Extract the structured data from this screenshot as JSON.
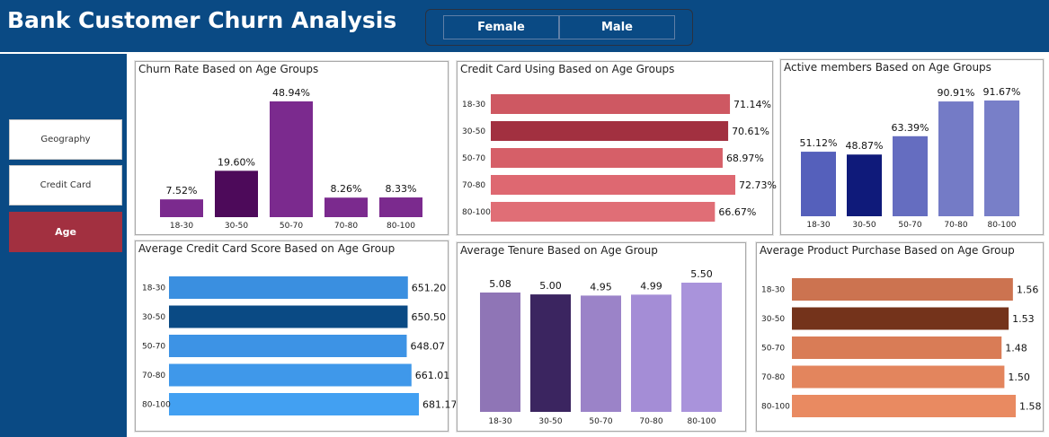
{
  "title": "Bank Customer Churn Analysis",
  "gender_filter": [
    "Female",
    "Male"
  ],
  "nav": [
    "Geography",
    "Credit Card",
    "Age"
  ],
  "active_nav": "Age",
  "colors": {
    "header": "#0a4a84",
    "active_nav": "#a23040"
  },
  "chart_data": [
    {
      "id": "churn",
      "type": "bar",
      "title": "Churn Rate Based on Age Groups",
      "categories": [
        "18-30",
        "30-50",
        "50-70",
        "70-80",
        "80-100"
      ],
      "values": [
        7.52,
        19.6,
        48.94,
        8.26,
        8.33
      ],
      "labels": [
        "7.52%",
        "19.60%",
        "48.94%",
        "8.26%",
        "8.33%"
      ],
      "colors": [
        "#7b2a8e",
        "#4d0a5a",
        "#7b2a8e",
        "#7b2a8e",
        "#7b2a8e"
      ],
      "ylim": [
        0,
        48.94
      ]
    },
    {
      "id": "creditcard",
      "type": "bar",
      "orientation": "horizontal",
      "title": "Credit Card Using Based on Age Groups",
      "categories": [
        "18-30",
        "30-50",
        "50-70",
        "70-80",
        "80-100"
      ],
      "values": [
        71.14,
        70.61,
        68.97,
        72.73,
        66.67
      ],
      "labels": [
        "71.14%",
        "70.61%",
        "68.97%",
        "72.73%",
        "66.67%"
      ],
      "colors": [
        "#ce5862",
        "#a23040",
        "#d65f68",
        "#de6871",
        "#e06e76"
      ],
      "xlim": [
        0,
        72.73
      ]
    },
    {
      "id": "active",
      "type": "bar",
      "title": "Active members Based on Age Groups",
      "categories": [
        "18-30",
        "30-50",
        "50-70",
        "70-80",
        "80-100"
      ],
      "values": [
        51.12,
        48.87,
        63.39,
        90.91,
        91.67
      ],
      "labels": [
        "51.12%",
        "48.87%",
        "63.39%",
        "90.91%",
        "91.67%"
      ],
      "colors": [
        "#5560bb",
        "#0f1a7a",
        "#656dc0",
        "#747bc6",
        "#787fc8"
      ],
      "ylim": [
        0,
        91.67
      ]
    },
    {
      "id": "score",
      "type": "bar",
      "orientation": "horizontal",
      "title": "Average Credit Card Score Based on Age Group",
      "categories": [
        "18-30",
        "30-50",
        "50-70",
        "70-80",
        "80-100"
      ],
      "values": [
        651.2,
        650.5,
        648.07,
        661.01,
        681.17
      ],
      "labels": [
        "651.20",
        "650.50",
        "648.07",
        "661.01",
        "681.17"
      ],
      "colors": [
        "#3a8fe0",
        "#0a4a84",
        "#3d93e5",
        "#3f98ea",
        "#42a0f2"
      ],
      "xlim": [
        0,
        681.17
      ]
    },
    {
      "id": "tenure",
      "type": "bar",
      "title": "Average Tenure Based on Age Group",
      "categories": [
        "18-30",
        "30-50",
        "50-70",
        "70-80",
        "80-100"
      ],
      "values": [
        5.08,
        5.0,
        4.95,
        4.99,
        5.5
      ],
      "labels": [
        "5.08",
        "5.00",
        "4.95",
        "4.99",
        "5.50"
      ],
      "colors": [
        "#8f75b6",
        "#3b2560",
        "#9b83c8",
        "#a48dd6",
        "#a993db"
      ],
      "ylim": [
        0,
        5.5
      ]
    },
    {
      "id": "product",
      "type": "bar",
      "orientation": "horizontal",
      "title": "Average Product Purchase Based on Age Group",
      "categories": [
        "18-30",
        "30-50",
        "50-70",
        "70-80",
        "80-100"
      ],
      "values": [
        1.56,
        1.53,
        1.48,
        1.5,
        1.58
      ],
      "labels": [
        "1.56",
        "1.53",
        "1.48",
        "1.50",
        "1.58"
      ],
      "colors": [
        "#cc7350",
        "#74331b",
        "#d97c56",
        "#e3855d",
        "#e98a61"
      ],
      "xlim": [
        0,
        1.58
      ]
    }
  ]
}
